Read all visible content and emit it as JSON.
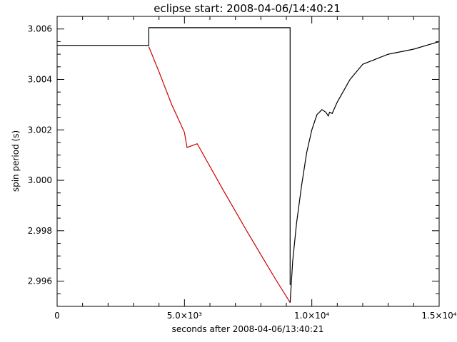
{
  "chart_data": {
    "type": "line",
    "title": "eclipse start: 2008-04-06/14:40:21",
    "xlabel": "seconds after 2008-04-06/13:40:21",
    "ylabel": "spin period (s)",
    "xlim": [
      0,
      15000
    ],
    "ylim": [
      2.995,
      3.0065
    ],
    "grid": false,
    "x_major_ticks": [
      0,
      5000,
      10000,
      15000
    ],
    "x_tick_labels": [
      "0",
      "5.0×10³",
      "1.0×10⁴",
      "1.5×10⁴"
    ],
    "y_major_ticks": [
      2.996,
      2.998,
      3.0,
      3.002,
      3.004,
      3.006
    ],
    "y_tick_labels": [
      "2.996",
      "2.998",
      "3.000",
      "3.002",
      "3.004",
      "3.006"
    ],
    "series": [
      {
        "color": "#000000",
        "x": [
          0,
          3600,
          3600,
          9150,
          9150
        ],
        "y": [
          3.00535,
          3.00535,
          3.00605,
          3.00605,
          2.99585
        ]
      },
      {
        "color": "#cc0000",
        "x": [
          3600,
          4000,
          4500,
          5000,
          5100,
          5500,
          6500,
          7500,
          8500,
          9150
        ],
        "y": [
          3.0053,
          3.0043,
          3.003,
          3.0019,
          3.0013,
          3.00145,
          2.99965,
          2.9979,
          2.9962,
          2.99515
        ]
      },
      {
        "color": "#000000",
        "x": [
          9150,
          9250,
          9400,
          9600,
          9800,
          10000,
          10200,
          10400,
          10550,
          10650,
          10700,
          10800,
          11000,
          11500,
          12000,
          13000,
          14000,
          15000
        ],
        "y": [
          2.99515,
          2.9968,
          2.9983,
          2.9998,
          3.0011,
          3.002,
          3.0026,
          3.0028,
          3.0027,
          3.00255,
          3.0027,
          3.00265,
          3.0031,
          3.004,
          3.0046,
          3.005,
          3.0052,
          3.0055
        ]
      }
    ]
  }
}
